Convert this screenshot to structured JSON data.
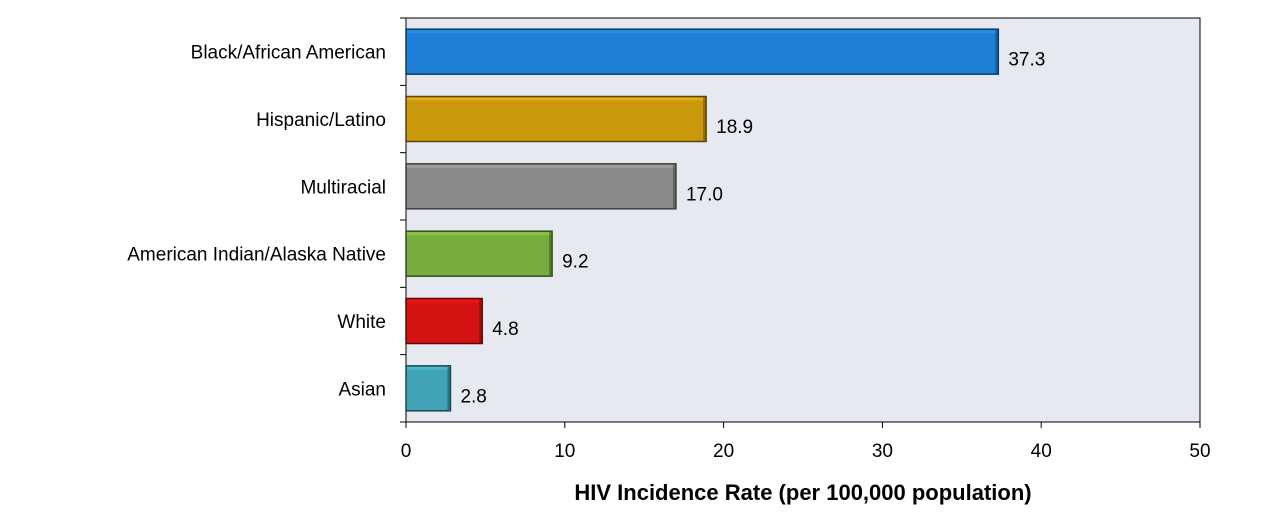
{
  "chart_data": {
    "type": "bar",
    "orientation": "horizontal",
    "categories": [
      "Black/African American",
      "Hispanic/Latino",
      "Multiracial",
      "American Indian/Alaska Native",
      "White",
      "Asian"
    ],
    "values": [
      37.3,
      18.9,
      17.0,
      9.2,
      4.8,
      2.8
    ],
    "value_labels": [
      "37.3",
      "18.9",
      "17.0",
      "9.2",
      "4.8",
      "2.8"
    ],
    "colors": [
      "#1f7fd6",
      "#c9980c",
      "#8a8a8a",
      "#76ad3e",
      "#d41313",
      "#3fa2b5"
    ],
    "title": "",
    "xlabel": "HIV Incidence Rate (per 100,000 population)",
    "ylabel": "",
    "xlim": [
      0,
      50
    ],
    "xticks": [
      0,
      10,
      20,
      30,
      40,
      50
    ],
    "grid": false,
    "plot_background": "#e6e9f0"
  }
}
